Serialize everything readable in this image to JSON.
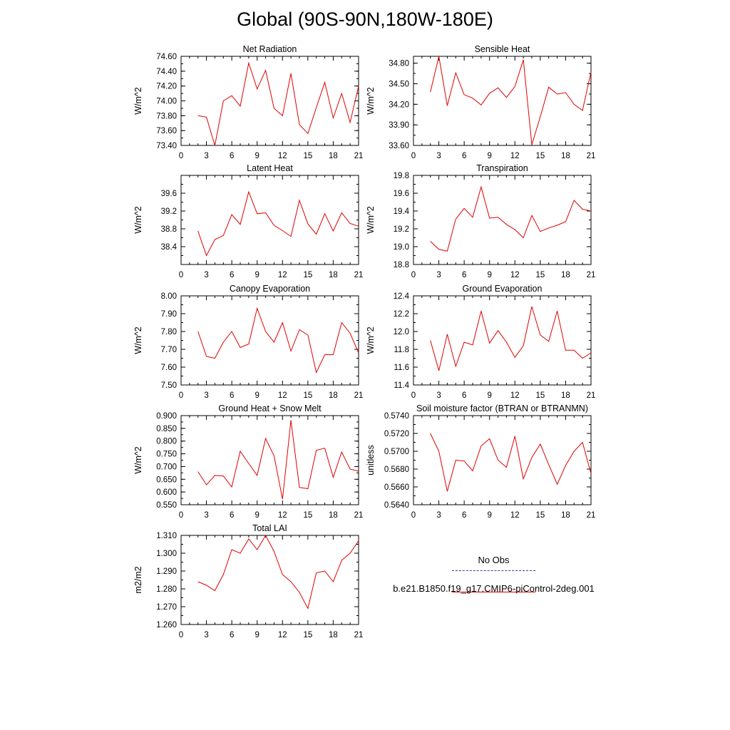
{
  "title": "Global (90S-90N,180W-180E)",
  "legend": {
    "entries": [
      {
        "label": "No Obs",
        "color": "#3a3a8c",
        "style": "dashed"
      },
      {
        "label": "b.e21.B1850.f19_g17.CMIP6-piControl-2deg.001",
        "color": "#e00000",
        "style": "solid"
      }
    ]
  },
  "chart_data": [
    {
      "type": "line",
      "title": "Net Radiation",
      "ylabel": "W/m^2",
      "xlim": [
        0,
        21
      ],
      "xticks": [
        "0",
        "3",
        "6",
        "9",
        "12",
        "15",
        "18",
        "21"
      ],
      "ylim": [
        73.4,
        74.6
      ],
      "yticks": [
        "73.40",
        "73.60",
        "73.80",
        "74.00",
        "74.20",
        "74.40",
        "74.60"
      ],
      "x": [
        2,
        3,
        4,
        5,
        6,
        7,
        8,
        9,
        10,
        11,
        12,
        13,
        14,
        15,
        16,
        17,
        18,
        19,
        20,
        21
      ],
      "series": [
        {
          "values": [
            73.8,
            73.78,
            73.4,
            74.0,
            74.07,
            73.93,
            74.51,
            74.16,
            74.41,
            73.9,
            73.8,
            74.37,
            73.68,
            73.56,
            73.91,
            74.25,
            73.77,
            74.1,
            73.71,
            74.2
          ],
          "color": "#e00000"
        }
      ]
    },
    {
      "type": "line",
      "title": "Sensible Heat",
      "ylabel": "W/m^2",
      "xlim": [
        0,
        21
      ],
      "xticks": [
        "0",
        "3",
        "6",
        "9",
        "12",
        "15",
        "18",
        "21"
      ],
      "ylim": [
        33.6,
        34.9
      ],
      "yticks": [
        "33.60",
        "33.90",
        "34.20",
        "34.50",
        "34.80"
      ],
      "x": [
        2,
        3,
        4,
        5,
        6,
        7,
        8,
        9,
        10,
        11,
        12,
        13,
        14,
        15,
        16,
        17,
        18,
        19,
        20,
        21
      ],
      "series": [
        {
          "values": [
            34.38,
            34.9,
            34.18,
            34.66,
            34.34,
            34.29,
            34.19,
            34.36,
            34.44,
            34.3,
            34.46,
            34.85,
            33.61,
            34.02,
            34.45,
            34.35,
            34.37,
            34.2,
            34.11,
            34.67
          ],
          "color": "#e00000"
        }
      ]
    },
    {
      "type": "line",
      "title": "Latent Heat",
      "ylabel": "W/m^2",
      "xlim": [
        0,
        21
      ],
      "xticks": [
        "0",
        "3",
        "6",
        "9",
        "12",
        "15",
        "18",
        "21"
      ],
      "ylim": [
        38.0,
        40.0
      ],
      "yticks": [
        "38.4",
        "38.8",
        "39.2",
        "39.6"
      ],
      "x": [
        2,
        3,
        4,
        5,
        6,
        7,
        8,
        9,
        10,
        11,
        12,
        13,
        14,
        15,
        16,
        17,
        18,
        19,
        20,
        21
      ],
      "series": [
        {
          "values": [
            38.75,
            38.2,
            38.56,
            38.65,
            39.12,
            38.9,
            39.63,
            39.14,
            39.16,
            38.88,
            38.76,
            38.63,
            39.44,
            38.91,
            38.68,
            39.14,
            38.75,
            39.16,
            38.92,
            38.86
          ],
          "color": "#e00000"
        }
      ]
    },
    {
      "type": "line",
      "title": "Transpiration",
      "ylabel": "W/m^2",
      "xlim": [
        0,
        21
      ],
      "xticks": [
        "0",
        "3",
        "6",
        "9",
        "12",
        "15",
        "18",
        "21"
      ],
      "ylim": [
        18.8,
        19.8
      ],
      "yticks": [
        "18.8",
        "19.0",
        "19.2",
        "19.4",
        "19.6",
        "19.8"
      ],
      "x": [
        2,
        3,
        4,
        5,
        6,
        7,
        8,
        9,
        10,
        11,
        12,
        13,
        14,
        15,
        16,
        17,
        18,
        19,
        20,
        21
      ],
      "series": [
        {
          "values": [
            19.06,
            18.97,
            18.95,
            19.31,
            19.43,
            19.33,
            19.67,
            19.32,
            19.33,
            19.25,
            19.19,
            19.1,
            19.35,
            19.17,
            19.21,
            19.24,
            19.28,
            19.52,
            19.42,
            19.4
          ],
          "color": "#e00000"
        }
      ]
    },
    {
      "type": "line",
      "title": "Canopy Evaporation",
      "ylabel": "W/m^2",
      "xlim": [
        0,
        21
      ],
      "xticks": [
        "0",
        "3",
        "6",
        "9",
        "12",
        "15",
        "18",
        "21"
      ],
      "ylim": [
        7.5,
        8.0
      ],
      "yticks": [
        "7.50",
        "7.60",
        "7.70",
        "7.80",
        "7.90",
        "8.00"
      ],
      "x": [
        2,
        3,
        4,
        5,
        6,
        7,
        8,
        9,
        10,
        11,
        12,
        13,
        14,
        15,
        16,
        17,
        18,
        19,
        20,
        21
      ],
      "series": [
        {
          "values": [
            7.8,
            7.66,
            7.65,
            7.74,
            7.8,
            7.71,
            7.73,
            7.93,
            7.8,
            7.74,
            7.85,
            7.69,
            7.81,
            7.78,
            7.57,
            7.67,
            7.67,
            7.85,
            7.79,
            7.68
          ],
          "color": "#e00000"
        }
      ]
    },
    {
      "type": "line",
      "title": "Ground Evaporation",
      "ylabel": "W/m^2",
      "xlim": [
        0,
        21
      ],
      "xticks": [
        "0",
        "3",
        "6",
        "9",
        "12",
        "15",
        "18",
        "21"
      ],
      "ylim": [
        11.4,
        12.4
      ],
      "yticks": [
        "11.4",
        "11.6",
        "11.8",
        "12.0",
        "12.2",
        "12.4"
      ],
      "x": [
        2,
        3,
        4,
        5,
        6,
        7,
        8,
        9,
        10,
        11,
        12,
        13,
        14,
        15,
        16,
        17,
        18,
        19,
        20,
        21
      ],
      "series": [
        {
          "values": [
            11.9,
            11.56,
            11.97,
            11.61,
            11.88,
            11.85,
            12.23,
            11.87,
            12.01,
            11.88,
            11.71,
            11.84,
            12.28,
            11.96,
            11.89,
            12.23,
            11.79,
            11.79,
            11.7,
            11.76
          ],
          "color": "#e00000"
        }
      ]
    },
    {
      "type": "line",
      "title": "Ground Heat + Snow Melt",
      "ylabel": "W/m^2",
      "xlim": [
        0,
        21
      ],
      "xticks": [
        "0",
        "3",
        "6",
        "9",
        "12",
        "15",
        "18",
        "21"
      ],
      "ylim": [
        0.55,
        0.9
      ],
      "yticks": [
        "0.550",
        "0.600",
        "0.650",
        "0.700",
        "0.750",
        "0.800",
        "0.850",
        "0.900"
      ],
      "x": [
        2,
        3,
        4,
        5,
        6,
        7,
        8,
        9,
        10,
        11,
        12,
        13,
        14,
        15,
        16,
        17,
        18,
        19,
        20,
        21
      ],
      "series": [
        {
          "values": [
            0.68,
            0.628,
            0.665,
            0.663,
            0.62,
            0.76,
            0.712,
            0.665,
            0.81,
            0.742,
            0.572,
            0.882,
            0.618,
            0.613,
            0.764,
            0.772,
            0.658,
            0.757,
            0.69,
            0.682
          ],
          "color": "#e00000"
        }
      ]
    },
    {
      "type": "line",
      "title": "Soil moisture factor (BTRAN or BTRANMN)",
      "ylabel": "unitless",
      "xlim": [
        0,
        21
      ],
      "xticks": [
        "0",
        "3",
        "6",
        "9",
        "12",
        "15",
        "18",
        "21"
      ],
      "ylim": [
        0.564,
        0.574
      ],
      "yticks": [
        "0.5640",
        "0.5660",
        "0.5680",
        "0.5700",
        "0.5720",
        "0.5740"
      ],
      "x": [
        2,
        3,
        4,
        5,
        6,
        7,
        8,
        9,
        10,
        11,
        12,
        13,
        14,
        15,
        16,
        17,
        18,
        19,
        20,
        21
      ],
      "series": [
        {
          "values": [
            0.572,
            0.57,
            0.5655,
            0.569,
            0.5689,
            0.5678,
            0.5706,
            0.5714,
            0.569,
            0.5682,
            0.5717,
            0.5669,
            0.5693,
            0.5708,
            0.5685,
            0.5663,
            0.5684,
            0.57,
            0.571,
            0.5675
          ],
          "color": "#e00000"
        }
      ]
    },
    {
      "type": "line",
      "title": "Total LAI",
      "ylabel": "m2/m2",
      "xlim": [
        0,
        21
      ],
      "xticks": [
        "0",
        "3",
        "6",
        "9",
        "12",
        "15",
        "18",
        "21"
      ],
      "ylim": [
        1.26,
        1.31
      ],
      "yticks": [
        "1.260",
        "1.270",
        "1.280",
        "1.290",
        "1.300",
        "1.310"
      ],
      "x": [
        2,
        3,
        4,
        5,
        6,
        7,
        8,
        9,
        10,
        11,
        12,
        13,
        14,
        15,
        16,
        17,
        18,
        19,
        20,
        21
      ],
      "series": [
        {
          "values": [
            1.284,
            1.282,
            1.279,
            1.288,
            1.302,
            1.3,
            1.308,
            1.302,
            1.31,
            1.301,
            1.288,
            1.284,
            1.278,
            1.269,
            1.289,
            1.29,
            1.284,
            1.296,
            1.3,
            1.307
          ],
          "color": "#e00000"
        }
      ]
    }
  ]
}
